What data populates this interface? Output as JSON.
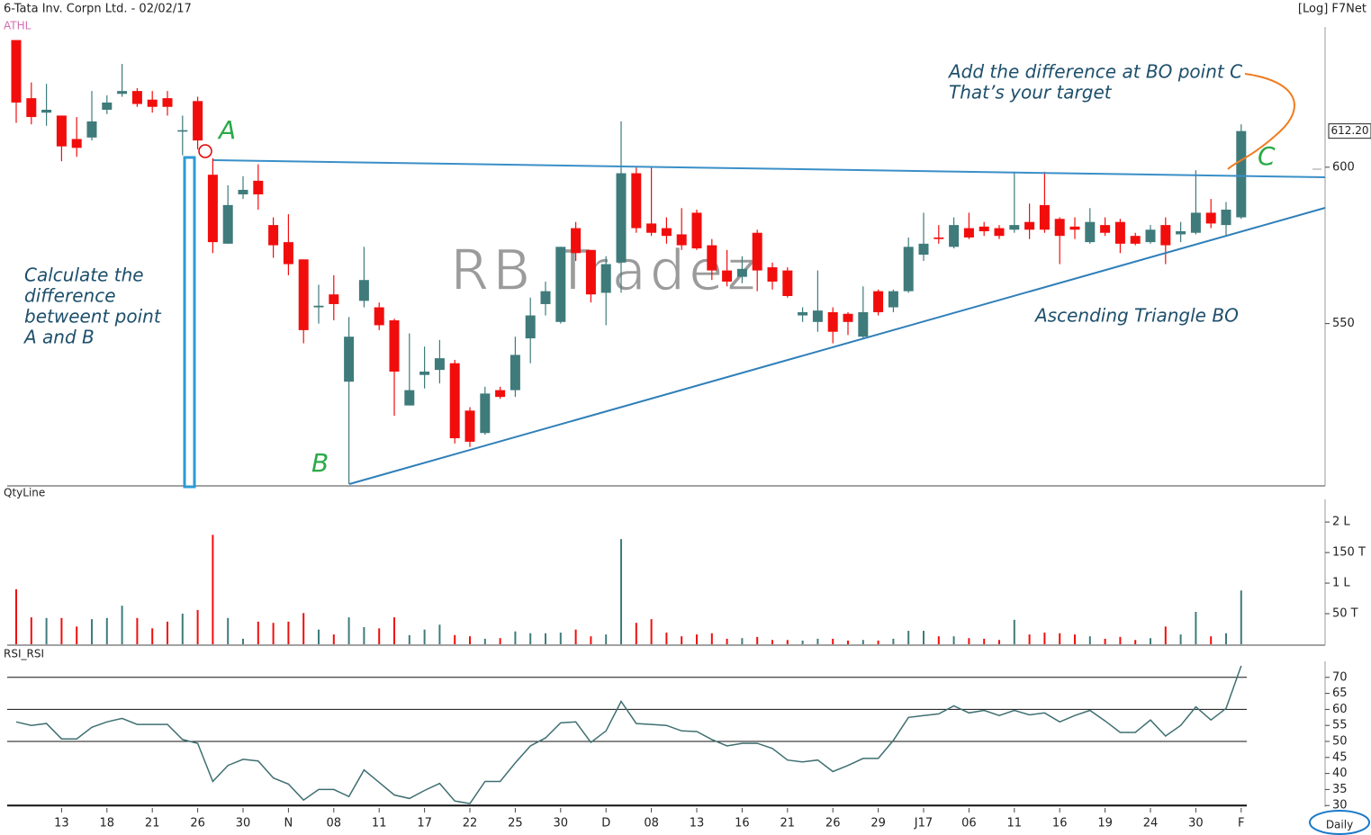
{
  "chart_data": [
    {
      "type": "candlestick",
      "title": "6-Tata Inv. Corpn Ltd. - 02/02/17",
      "scale_label": "[Log] F7Net",
      "indicator": "ATHL",
      "watermark": "RB Tradez",
      "annotations": [
        "A",
        "B",
        "C",
        "Calculate the",
        "difference",
        "betweent point",
        "A and B",
        "Add the difference at BO point C",
        "That’s your target",
        "Ascending Triangle BO"
      ],
      "categories": [
        null,
        null,
        null,
        "13",
        null,
        null,
        "18",
        null,
        null,
        "21",
        null,
        null,
        "26",
        null,
        null,
        "30",
        null,
        null,
        "N",
        null,
        null,
        "08",
        null,
        null,
        "11",
        null,
        null,
        "17",
        null,
        null,
        "22",
        null,
        null,
        "25",
        null,
        null,
        "30",
        null,
        null,
        "D",
        null,
        null,
        "08",
        null,
        null,
        "13",
        null,
        null,
        "16",
        null,
        null,
        "21",
        null,
        null,
        "26",
        null,
        null,
        "29",
        null,
        null,
        "J17",
        null,
        null,
        "06",
        null,
        null,
        "11",
        null,
        null,
        "16",
        null,
        null,
        "19",
        null,
        null,
        "24",
        null,
        null,
        "30",
        null,
        null,
        "F"
      ],
      "open": [
        644,
        623.5,
        618.5,
        617.5,
        609.5,
        610,
        619.5,
        625,
        626,
        623,
        623.5,
        612,
        622.5,
        597.5,
        575,
        591,
        595.5,
        581,
        575.5,
        570,
        555,
        559,
        532.5,
        557,
        555,
        551,
        525.5,
        534.5,
        536,
        538,
        524,
        517.5,
        530,
        530,
        545.5,
        556,
        550.5,
        580,
        573,
        559.5,
        569,
        598,
        581.5,
        580,
        578,
        585,
        574.5,
        566.5,
        564.5,
        578.5,
        567.5,
        566.5,
        552.5,
        550.5,
        553.5,
        553,
        546,
        560,
        555,
        560,
        571.5,
        577,
        574,
        580,
        580.5,
        580,
        579.5,
        582,
        587.5,
        583,
        580.5,
        575.5,
        581,
        582,
        577.5,
        575.5,
        581,
        578,
        578.5,
        585,
        581,
        583.5
      ],
      "high": [
        644,
        629,
        628.5,
        617.5,
        617,
        626,
        624.5,
        635.5,
        627,
        626,
        626,
        617.5,
        624,
        603,
        594,
        597,
        601,
        583.5,
        584.5,
        570,
        562,
        565,
        552,
        574,
        556.5,
        551.5,
        547,
        543,
        545,
        539,
        525,
        531,
        531,
        546,
        558,
        563,
        574,
        582,
        573,
        571,
        615.5,
        600,
        600,
        583.5,
        586.5,
        586,
        576.5,
        573,
        571,
        579.5,
        569,
        567.5,
        555,
        566.5,
        555,
        553.5,
        561.5,
        560.5,
        560.5,
        577,
        585,
        581,
        583.5,
        585,
        582,
        581,
        598.5,
        588,
        598.5,
        583.5,
        583.5,
        586.5,
        583.5,
        583,
        578.5,
        581,
        583.5,
        582,
        599,
        589.5,
        588.5,
        614.5
      ],
      "low": [
        615,
        614.5,
        614,
        602,
        603.5,
        609,
        618,
        624,
        620.5,
        618.5,
        617.5,
        604,
        606,
        572,
        575,
        589.5,
        586,
        570.5,
        565,
        544,
        550,
        551,
        503,
        555,
        548,
        522.5,
        525.5,
        530.5,
        532,
        514.5,
        513.5,
        517,
        527.5,
        528,
        538,
        552.5,
        550,
        569.5,
        556.5,
        549.5,
        559.5,
        578.5,
        577.5,
        575,
        573,
        573,
        563.5,
        561.5,
        562.5,
        560,
        560.5,
        558,
        550.5,
        547.5,
        544,
        546.5,
        545.5,
        552.5,
        553.5,
        559.5,
        569.5,
        575,
        573.5,
        576.5,
        577.5,
        576.5,
        578.5,
        576.5,
        578.5,
        568.5,
        576.5,
        575,
        577.5,
        572,
        574.5,
        575,
        568.5,
        575.5,
        578,
        580,
        577.5,
        583
      ],
      "close": [
        622,
        617,
        619.5,
        607,
        606.5,
        615.5,
        622,
        626,
        621.5,
        620.5,
        620.5,
        612.5,
        609,
        575.5,
        587.5,
        592.5,
        591,
        574.5,
        568.5,
        548,
        555.5,
        556,
        546,
        563.5,
        549.5,
        535.5,
        530,
        535.5,
        539.5,
        516,
        515,
        529,
        528,
        540.5,
        552.5,
        560,
        574,
        572,
        559,
        568.5,
        598,
        580,
        578.5,
        577.5,
        574.5,
        573.5,
        566.5,
        563,
        567,
        566.5,
        563,
        558.5,
        553.5,
        554,
        547.5,
        550.5,
        553.5,
        553.5,
        560,
        574,
        575,
        576.5,
        581,
        577,
        579,
        577.5,
        581,
        579.5,
        579.5,
        577.5,
        579.5,
        582,
        578.5,
        575,
        575,
        579.5,
        574.5,
        579,
        585,
        581.5,
        586,
        612.2
      ],
      "up_color": "#3f7b7b",
      "down_color": "#f20d0d",
      "log_scale": true,
      "ylim": [
        502.5,
        648.7
      ],
      "yticks": [
        550,
        600
      ],
      "last_price": {
        "value": 612.2,
        "label": "612.20"
      }
    },
    {
      "type": "volume",
      "title": "QtyLine",
      "values": [
        90,
        44,
        43,
        43,
        29,
        41,
        43,
        63,
        43,
        26,
        37,
        50,
        56,
        179,
        43,
        9,
        37,
        35,
        37,
        51,
        24,
        16,
        44,
        28,
        26,
        44,
        15,
        24,
        32,
        15,
        13,
        9,
        10,
        21,
        18,
        18,
        19,
        24,
        13,
        16,
        172,
        35,
        41,
        19,
        13,
        16,
        18,
        9,
        10,
        12,
        7,
        7,
        6,
        9,
        9,
        6,
        7,
        6,
        9,
        22,
        22,
        13,
        13,
        10,
        9,
        7,
        40,
        16,
        19,
        18,
        16,
        13,
        9,
        12,
        7,
        10,
        29,
        16,
        53,
        13,
        18,
        88
      ],
      "ylim": [
        0,
        237
      ],
      "yticks": [
        {
          "value": 200,
          "label": "2 L"
        },
        {
          "value": 150,
          "label": "150 T"
        },
        {
          "value": 100,
          "label": "1 L"
        },
        {
          "value": 50,
          "label": "50 T"
        }
      ]
    },
    {
      "type": "line",
      "title": "RSI_RSI",
      "color": "#3f6f72",
      "values": [
        56.1,
        55,
        55.6,
        50.8,
        50.8,
        54.4,
        56.1,
        57.2,
        55.3,
        55.3,
        55.3,
        50.6,
        49.4,
        37.5,
        42.5,
        44.4,
        43.9,
        38.6,
        36.7,
        31.7,
        35,
        35,
        32.8,
        41.1,
        37.2,
        33.3,
        32.2,
        34.7,
        36.9,
        31.4,
        30.6,
        37.5,
        37.5,
        43.3,
        48.6,
        51.1,
        55.8,
        56.1,
        49.7,
        53.3,
        62.5,
        55.6,
        55.3,
        55,
        53.3,
        53.1,
        50.6,
        48.6,
        49.4,
        49.4,
        47.8,
        44.2,
        43.6,
        44.2,
        40.6,
        42.5,
        44.7,
        44.7,
        50.3,
        57.5,
        58.1,
        58.6,
        61.1,
        58.9,
        59.7,
        58.1,
        59.7,
        58.3,
        58.9,
        56.1,
        58.1,
        59.7,
        56.4,
        52.8,
        52.8,
        56.7,
        51.7,
        55,
        60.8,
        56.7,
        60.3,
        73.6
      ],
      "ylim": [
        29.5,
        75
      ],
      "yticks": [
        30,
        35,
        40,
        45,
        50,
        55,
        60,
        65,
        70
      ],
      "levels": [
        30,
        50,
        60,
        70
      ]
    }
  ],
  "footer": {
    "period": "Daily"
  }
}
